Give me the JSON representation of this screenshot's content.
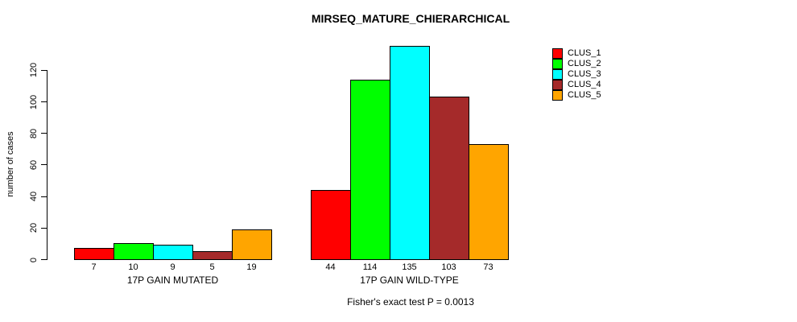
{
  "chart_data": {
    "type": "bar",
    "title": "MIRSEQ_MATURE_CHIERARCHICAL",
    "ylabel": "number of cases",
    "xlabel": "",
    "subtitle": "Fisher's exact test P = 0.0013",
    "groups": [
      {
        "label": "17P GAIN MUTATED",
        "values": [
          7,
          10,
          9,
          5,
          19
        ]
      },
      {
        "label": "17P GAIN WILD-TYPE",
        "values": [
          44,
          114,
          135,
          103,
          73
        ]
      }
    ],
    "series_names": [
      "CLUS_1",
      "CLUS_2",
      "CLUS_3",
      "CLUS_4",
      "CLUS_5"
    ],
    "colors": [
      "#FF0000",
      "#00FF00",
      "#00FFFF",
      "#A52A2A",
      "#FFA500"
    ],
    "y_ticks": [
      0,
      20,
      40,
      60,
      80,
      100,
      120
    ],
    "ylim": [
      0,
      135
    ],
    "grid": false,
    "legend_position": "right",
    "bar_value_labels": true
  }
}
